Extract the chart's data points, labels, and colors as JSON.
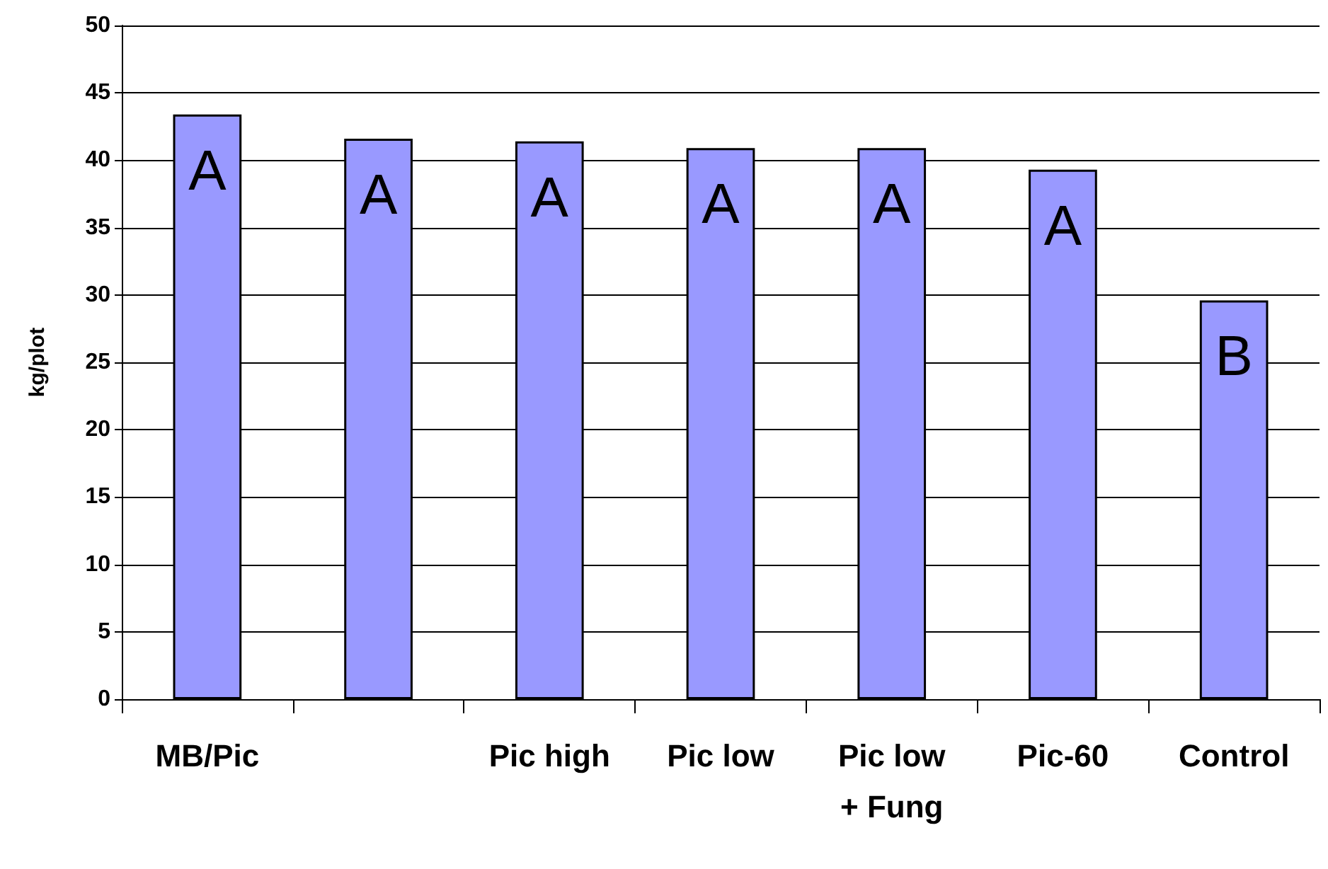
{
  "chart_data": {
    "type": "bar",
    "ylabel": "kg/plot",
    "categories": [
      "MB/Pic",
      null,
      "Pic high",
      "Pic low",
      "Pic low\n+ Fung",
      "Pic-60",
      "Control"
    ],
    "values": [
      43.4,
      41.6,
      41.4,
      40.9,
      40.9,
      39.3,
      29.6
    ],
    "value_labels": [
      "A",
      "A",
      "A",
      "A",
      "A",
      "A",
      "B"
    ],
    "color": "#9999ff",
    "ylim": [
      0,
      50
    ],
    "yticks": [
      0,
      5,
      10,
      15,
      20,
      25,
      30,
      35,
      40,
      45,
      50
    ],
    "grid": "y"
  }
}
